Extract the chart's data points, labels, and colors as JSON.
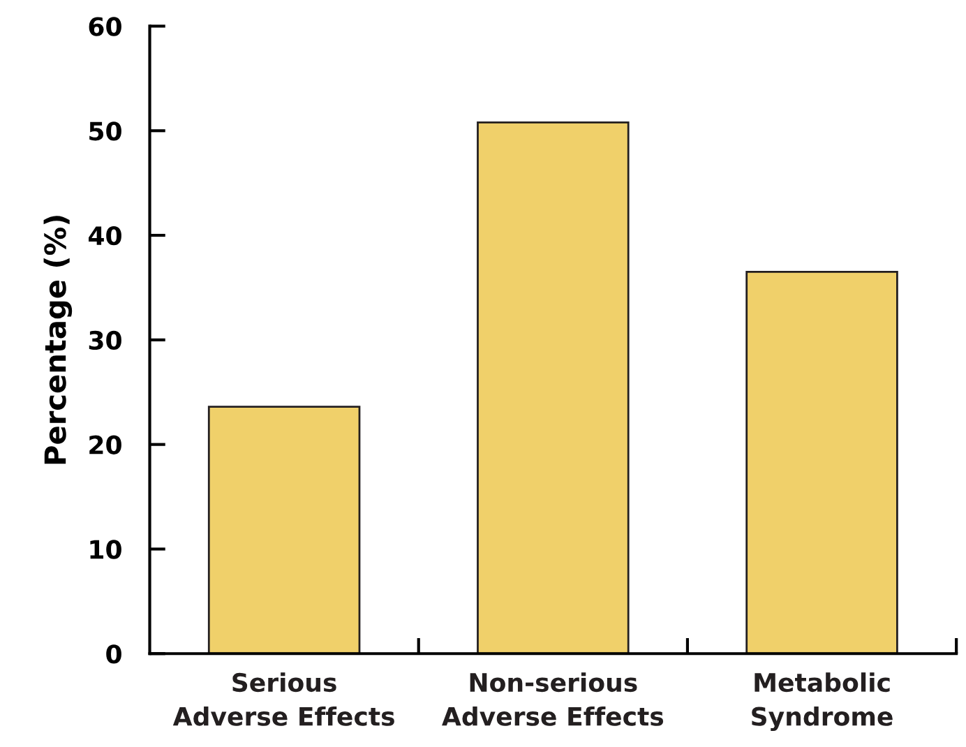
{
  "chart_data": {
    "type": "bar",
    "ylabel": "Percentage (%)",
    "categories": [
      "Serious\nAdverse Effects",
      "Non-serious\nAdverse Effects",
      "Metabolic\nSyndrome"
    ],
    "values": [
      23.6,
      50.8,
      36.5
    ],
    "color": "#f0d06a",
    "ylim": [
      0,
      60
    ],
    "yticks": [
      0,
      10,
      20,
      30,
      40,
      50,
      60
    ],
    "grid": false,
    "legend": false
  }
}
